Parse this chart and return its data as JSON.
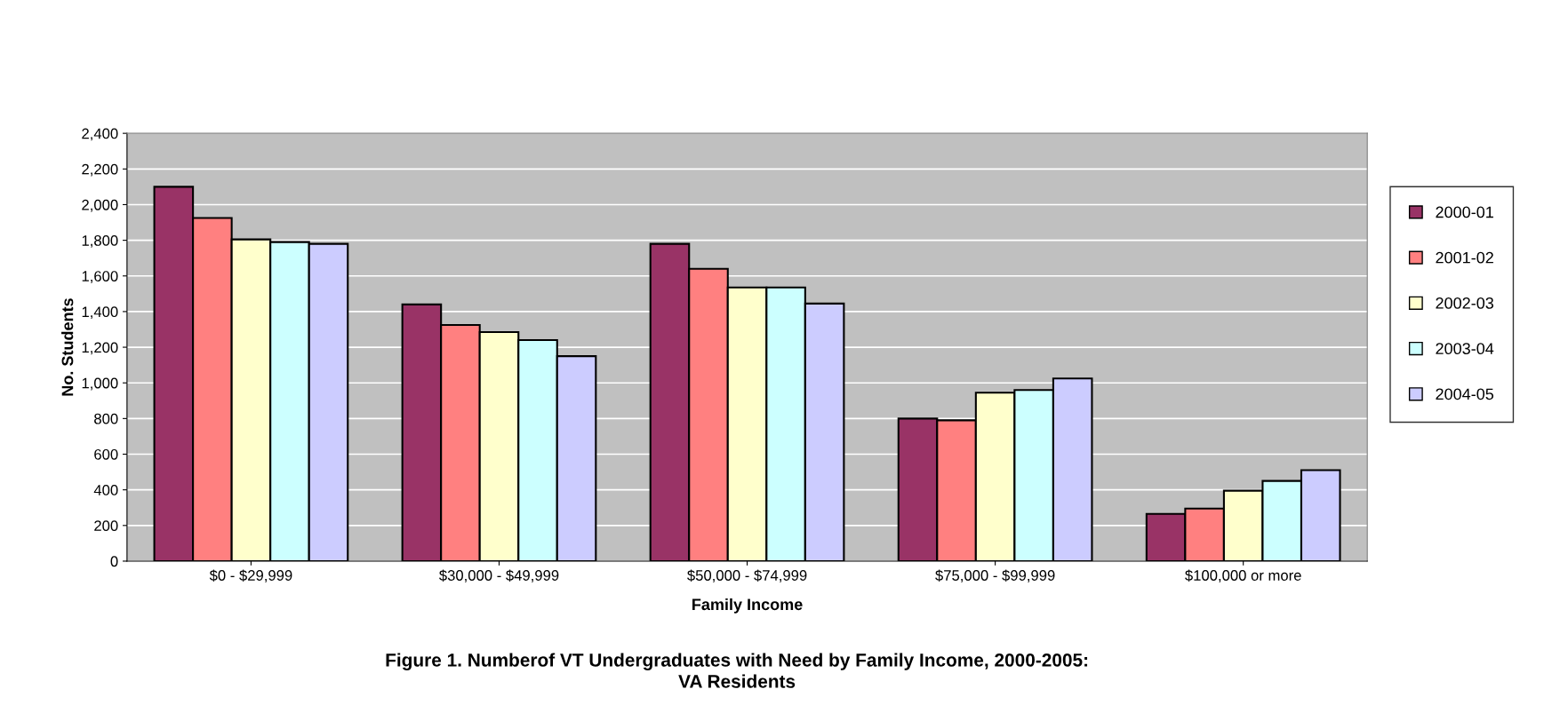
{
  "chart_data": {
    "type": "bar",
    "title": "Figure 1. Numberof VT Undergraduates with Need by Family Income, 2000-2005:\nVA Residents",
    "xlabel": "Family Income",
    "ylabel": "No. Students",
    "categories": [
      "$0 - $29,999",
      "$30,000 - $49,999",
      "$50,000 - $74,999",
      "$75,000 - $99,999",
      "$100,000 or more"
    ],
    "series": [
      {
        "name": "2000-01",
        "color": "#993366",
        "values": [
          2100,
          1440,
          1780,
          800,
          265
        ]
      },
      {
        "name": "2001-02",
        "color": "#ff8080",
        "values": [
          1925,
          1325,
          1640,
          790,
          295
        ]
      },
      {
        "name": "2002-03",
        "color": "#ffffcc",
        "values": [
          1805,
          1285,
          1535,
          945,
          395
        ]
      },
      {
        "name": "2003-04",
        "color": "#ccffff",
        "values": [
          1790,
          1240,
          1535,
          960,
          450
        ]
      },
      {
        "name": "2004-05",
        "color": "#ccccff",
        "values": [
          1780,
          1150,
          1445,
          1025,
          510
        ]
      }
    ],
    "ylim": [
      0,
      2400
    ],
    "yticks": [
      {
        "value": 0,
        "label": "0"
      },
      {
        "value": 200,
        "label": "200"
      },
      {
        "value": 400,
        "label": "400"
      },
      {
        "value": 600,
        "label": "600"
      },
      {
        "value": 800,
        "label": "800"
      },
      {
        "value": 1000,
        "label": "1,000"
      },
      {
        "value": 1200,
        "label": "1,200"
      },
      {
        "value": 1400,
        "label": "1,400"
      },
      {
        "value": 1600,
        "label": "1,600"
      },
      {
        "value": 1800,
        "label": "1,800"
      },
      {
        "value": 2000,
        "label": "2,000"
      },
      {
        "value": 2200,
        "label": "2,200"
      },
      {
        "value": 2400,
        "label": "2,400"
      }
    ],
    "grid": "y",
    "legend": "right"
  }
}
